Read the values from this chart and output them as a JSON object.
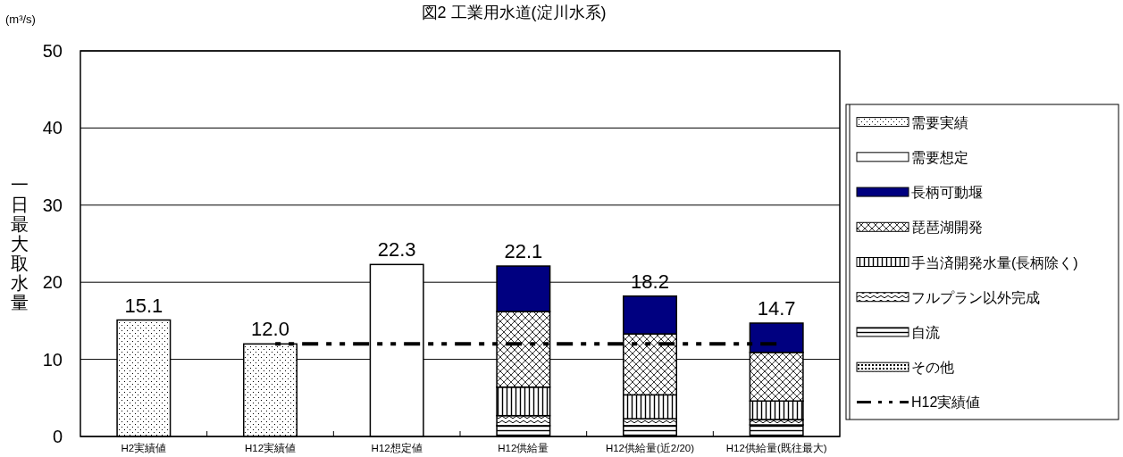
{
  "chart_data": {
    "type": "bar",
    "stacked": true,
    "title": "図2 工業用水道(淀川水系)",
    "ylabel": "一日最大取水量",
    "annotations": [
      "(m³/s)"
    ],
    "categories": [
      "H2実績値",
      "H12実績値",
      "H12想定値",
      "H12供給量",
      "H12供給量(近2/20)",
      "H12供給量(既往最大)"
    ],
    "series": [
      {
        "name": "その他",
        "color": "#000000",
        "values": [
          null,
          null,
          null,
          null,
          null,
          null
        ]
      },
      {
        "name": "自流",
        "color": "#000000",
        "values": [
          null,
          null,
          null,
          1.4,
          1.4,
          1.5
        ]
      },
      {
        "name": "フルプラン以外完成",
        "color": "#000000",
        "values": [
          null,
          null,
          null,
          1.3,
          0.9,
          0.7
        ]
      },
      {
        "name": "手当済開発水量(長柄除く)",
        "color": "#000000",
        "values": [
          null,
          null,
          null,
          3.7,
          3.1,
          2.4
        ]
      },
      {
        "name": "琵琶湖開発",
        "color": "#000000",
        "values": [
          null,
          null,
          null,
          9.8,
          7.9,
          6.3
        ]
      },
      {
        "name": "長柄可動堰",
        "color": "#000080",
        "values": [
          null,
          null,
          null,
          5.9,
          4.9,
          3.8
        ]
      },
      {
        "name": "需要想定",
        "color": "#ffffff",
        "values": [
          null,
          null,
          22.3,
          null,
          null,
          null
        ]
      },
      {
        "name": "需要実績",
        "color": "#000000",
        "values": [
          15.1,
          12.0,
          null,
          null,
          null,
          null
        ]
      },
      {
        "name": "H12実績値",
        "type": "line",
        "color": "#000000",
        "line_style": "dashed",
        "values": [
          null,
          12.0,
          12.0,
          12.0,
          12.0,
          12.0
        ]
      }
    ],
    "totals": [
      "15.1",
      "12.0",
      "22.3",
      "22.1",
      "18.2",
      "14.7"
    ],
    "ylim": [
      0,
      50
    ],
    "yticks": [
      0,
      10,
      20,
      30,
      40,
      50
    ],
    "grid": "y",
    "legend": "right"
  }
}
